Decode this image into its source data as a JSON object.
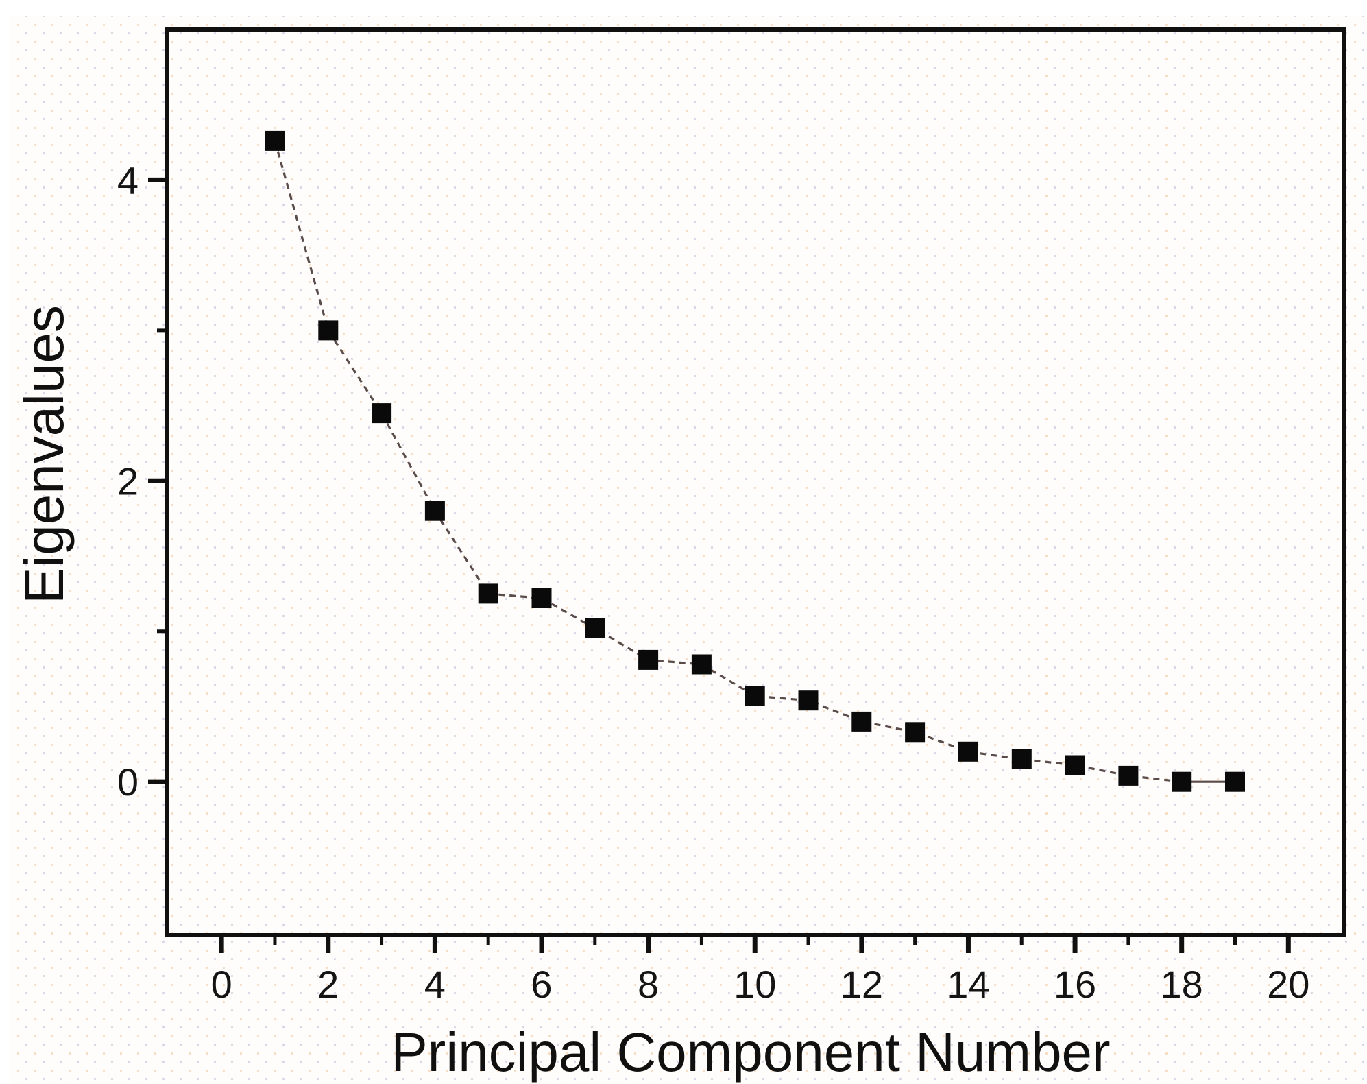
{
  "figure": {
    "description": "Scree plot of eigenvalues versus principal component number"
  },
  "chart_data": {
    "type": "line",
    "title": "",
    "xlabel": "Principal Component Number",
    "ylabel": "Eigenvalues",
    "x": [
      1,
      2,
      3,
      4,
      5,
      6,
      7,
      8,
      9,
      10,
      11,
      12,
      13,
      14,
      15,
      16,
      17,
      18,
      19
    ],
    "values": [
      4.26,
      3.0,
      2.45,
      1.8,
      1.25,
      1.22,
      1.02,
      0.81,
      0.78,
      0.57,
      0.54,
      0.4,
      0.33,
      0.2,
      0.15,
      0.11,
      0.04,
      0.0,
      0.0
    ],
    "series_name": "Eigenvalues",
    "xlim": [
      -1.03,
      21.05
    ],
    "ylim": [
      -1.02,
      5.0
    ],
    "xticks_major": [
      0,
      2,
      4,
      6,
      8,
      10,
      12,
      14,
      16,
      18,
      20
    ],
    "xticks_minor": [
      1,
      3,
      5,
      7,
      9,
      11,
      13,
      15,
      17,
      19
    ],
    "yticks_major": [
      0,
      2,
      4
    ],
    "yticks_minor": [
      1,
      3
    ],
    "grid": false,
    "legend": null,
    "marker": "filled-square",
    "marker_size_px": 29,
    "line_style": "dashed",
    "colors": {
      "axis": "#101010",
      "marker": "#0a0a0a",
      "line": "#5a4c48",
      "paper_dot_warm": "#e7a667",
      "paper_dot_cool": "#9393c7",
      "background": "#fefdfb"
    }
  }
}
